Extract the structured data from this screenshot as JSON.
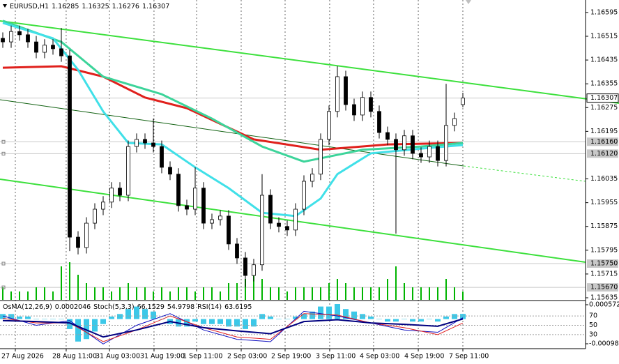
{
  "chart_data": {
    "type": "candlestick",
    "title": "EURUSD,H1",
    "open": [
      1.16508,
      1.16496,
      1.16531,
      1.1652,
      1.16496,
      1.16461,
      1.16485,
      1.16473,
      1.16449,
      1.15839,
      1.15804,
      1.15886,
      1.15933,
      1.15957,
      1.16004,
      1.1598,
      1.16144,
      1.16168,
      1.16156,
      1.16144,
      1.16074,
      1.16051,
      1.15945,
      1.15933,
      1.16004,
      1.15886,
      1.15898,
      1.1591,
      1.15816,
      1.15769,
      1.1571,
      1.15746,
      1.1598,
      1.15886,
      1.15875,
      1.15863,
      1.15933,
      1.16027,
      1.16051,
      1.16168,
      1.16262,
      1.16379,
      1.16285,
      1.1625,
      1.16309,
      1.16262,
      1.16191,
      1.16168,
      1.16133,
      1.1618,
      1.16121,
      1.16109,
      1.16144,
      1.16097,
      1.16215,
      1.16285
    ],
    "high": [
      1.16528,
      1.16551,
      1.16551,
      1.1654,
      1.16516,
      1.16505,
      1.16505,
      1.16543,
      1.16469,
      1.15859,
      1.15906,
      1.15953,
      1.15977,
      1.16024,
      1.16024,
      1.16164,
      1.16188,
      1.16188,
      1.16238,
      1.16164,
      1.16094,
      1.16071,
      1.15965,
      1.16074,
      1.16024,
      1.15918,
      1.1593,
      1.1593,
      1.15836,
      1.15789,
      1.15766,
      1.16051,
      1.16,
      1.15906,
      1.15895,
      1.15953,
      1.16047,
      1.16071,
      1.16188,
      1.16282,
      1.16414,
      1.16399,
      1.16305,
      1.16329,
      1.16329,
      1.16282,
      1.16211,
      1.16188,
      1.162,
      1.162,
      1.16141,
      1.16164,
      1.16164,
      1.16355,
      1.16258,
      1.16325
    ],
    "low": [
      1.16476,
      1.16476,
      1.165,
      1.16476,
      1.16441,
      1.16441,
      1.16453,
      1.16429,
      1.15792,
      1.15781,
      1.15784,
      1.15866,
      1.15913,
      1.15937,
      1.1596,
      1.1596,
      1.16124,
      1.16136,
      1.16124,
      1.16054,
      1.16031,
      1.15925,
      1.15913,
      1.15913,
      1.15866,
      1.15866,
      1.15878,
      1.15796,
      1.15749,
      1.15671,
      1.1569,
      1.15726,
      1.15866,
      1.15855,
      1.15843,
      1.15843,
      1.15913,
      1.16007,
      1.16031,
      1.16148,
      1.16242,
      1.16265,
      1.1623,
      1.1623,
      1.16242,
      1.16171,
      1.16148,
      1.15851,
      1.16113,
      1.16101,
      1.16089,
      1.16089,
      1.16077,
      1.16077,
      1.16195,
      1.16276
    ],
    "close": [
      1.16496,
      1.16531,
      1.1652,
      1.16496,
      1.16461,
      1.16485,
      1.16473,
      1.16449,
      1.15839,
      1.15804,
      1.15886,
      1.15933,
      1.15957,
      1.16004,
      1.1598,
      1.16144,
      1.16168,
      1.16156,
      1.16144,
      1.16074,
      1.16051,
      1.15945,
      1.15933,
      1.16004,
      1.15886,
      1.15898,
      1.1591,
      1.15816,
      1.15769,
      1.1571,
      1.15746,
      1.1598,
      1.15886,
      1.15875,
      1.15863,
      1.15933,
      1.16027,
      1.16051,
      1.16168,
      1.16262,
      1.16379,
      1.16285,
      1.1625,
      1.16309,
      1.16262,
      1.16191,
      1.16168,
      1.16133,
      1.1618,
      1.16121,
      1.16109,
      1.16144,
      1.16097,
      1.16215,
      1.16238,
      1.16307
    ],
    "candle_color": "#000000",
    "xlim": [
      -0.333,
      69.667
    ],
    "xticks": [
      {
        "value": 1.5,
        "label": "27 Aug 2026"
      },
      {
        "value": 7.58,
        "label": "28 Aug 11:00"
      },
      {
        "value": 12.75,
        "label": "31 Aug 03:00"
      },
      {
        "value": 18.08,
        "label": "31 Aug 19:00"
      },
      {
        "value": 23.17,
        "label": "1 Sep 11:00"
      },
      {
        "value": 28.5,
        "label": "2 Sep 03:00"
      },
      {
        "value": 33.75,
        "label": "2 Sep 19:00"
      },
      {
        "value": 39.08,
        "label": "3 Sep 11:00"
      },
      {
        "value": 44.33,
        "label": "4 Sep 03:00"
      },
      {
        "value": 49.67,
        "label": "4 Sep 19:00"
      },
      {
        "value": 55,
        "label": "7 Sep 11:00"
      }
    ],
    "ylim": [
      1.15628,
      1.16637
    ],
    "yticks": [
      1.16595,
      1.16515,
      1.16435,
      1.16355,
      1.16275,
      1.16195,
      1.16035,
      1.15955,
      1.15875,
      1.15795,
      1.15715,
      1.15635
    ],
    "levels": [
      {
        "value": 1.1616,
        "label": "1.16160"
      },
      {
        "value": 1.1612,
        "label": "1.16120"
      },
      {
        "value": 1.1575,
        "label": "1.15750"
      },
      {
        "value": 1.1567,
        "label": "1.15670"
      }
    ],
    "grid": true,
    "moving_averages": [
      {
        "color": "#e0201c",
        "x": [
          0,
          7,
          12,
          17,
          22,
          30,
          38,
          46,
          55
        ],
        "values": [
          1.16409,
          1.16414,
          1.16379,
          1.16309,
          1.16273,
          1.16168,
          1.16133,
          1.16151,
          1.16156
        ]
      },
      {
        "color": "#3cd49a",
        "x": [
          0,
          7,
          12,
          19,
          25,
          31,
          36,
          43,
          50,
          55
        ],
        "values": [
          1.16567,
          1.16496,
          1.16379,
          1.1632,
          1.16238,
          1.16144,
          1.16093,
          1.16133,
          1.16144,
          1.16156
        ]
      },
      {
        "color": "#40e0e8",
        "x": [
          0,
          6,
          9,
          12,
          15,
          19,
          23,
          27,
          31,
          35,
          38,
          40,
          44,
          50,
          55
        ],
        "values": [
          1.1656,
          1.16508,
          1.16402,
          1.16262,
          1.16156,
          1.16151,
          1.16074,
          1.16004,
          1.15921,
          1.1591,
          1.15969,
          1.16051,
          1.16121,
          1.16137,
          1.16149
        ]
      }
    ],
    "volume": {
      "color": "#00b400",
      "values": [
        3,
        2,
        2,
        2,
        3,
        3,
        2,
        8,
        9,
        6,
        4,
        3,
        3,
        2,
        3,
        4,
        3,
        3,
        2,
        3,
        2,
        3,
        3,
        2,
        3,
        3,
        2,
        4,
        4,
        5,
        6,
        5,
        3,
        3,
        2,
        3,
        3,
        3,
        3,
        4,
        5,
        4,
        3,
        3,
        3,
        3,
        5,
        8,
        4,
        3,
        3,
        3,
        3,
        5,
        3,
        2
      ]
    },
    "osma": {
      "label": "OsMA(12,26,9)",
      "color": "#3cc8e8",
      "values": [
        0.0002,
        0.0002,
        0.0001,
        0.0001,
        0,
        0,
        0,
        0,
        -0.0004,
        -0.0009,
        -0.0008,
        -0.0005,
        -0.0002,
        0.0001,
        0.0002,
        0.0004,
        0.0005,
        0.0004,
        0.0003,
        0,
        -0.0002,
        -0.0003,
        -0.0003,
        -0.0001,
        -0.0002,
        -0.0002,
        -0.0002,
        -0.0003,
        -0.0003,
        -0.0004,
        -0.0003,
        0.0002,
        0.0001,
        0,
        0,
        0.0001,
        0.0002,
        0.0003,
        0.0005,
        0.0005,
        0.0006,
        0.0004,
        0.0003,
        0.0002,
        0.0001,
        0,
        -0.0001,
        -0.0001,
        0,
        -0.0001,
        -0.0001,
        0,
        -0.0001,
        0.0001,
        0.0002,
        0.0002046
      ],
      "ylim": [
        -0.000989,
        0.0005724
      ],
      "yticks": [
        0.0005724,
        -0.000989
      ]
    },
    "oscillator": {
      "ylim": [
        0,
        100
      ],
      "yticks": [
        70,
        50,
        30
      ],
      "x": [
        0,
        4,
        8,
        12,
        16,
        20,
        24,
        28,
        32,
        36,
        40,
        44,
        48,
        52,
        55
      ],
      "stoch_label": "Stoch(5,3,3)",
      "stoch_main": {
        "color": "#1010c0",
        "values": [
          70,
          50,
          60,
          10,
          50,
          75,
          40,
          20,
          15,
          80,
          70,
          55,
          40,
          35,
          66.1529
        ]
      },
      "stoch_signal": {
        "color": "#e02020",
        "values": [
          65,
          55,
          55,
          15,
          40,
          70,
          45,
          25,
          20,
          75,
          72,
          55,
          45,
          30,
          54.9798
        ]
      },
      "rsi_label": "RSI(14)",
      "rsi": {
        "color": "#000080",
        "values": [
          60,
          58,
          55,
          25,
          40,
          58,
          45,
          38,
          32,
          58,
          62,
          55,
          52,
          48,
          63.6195
        ]
      }
    }
  }
}
